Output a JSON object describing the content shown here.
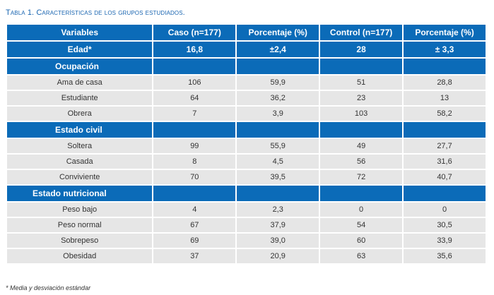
{
  "caption": "Tabla 1. Características de los grupos estudiados.",
  "header": [
    "Variables",
    "Caso (n=177)",
    "Porcentaje (%)",
    "Control (n=177)",
    "Porcentaje (%)"
  ],
  "summary": [
    "Edad*",
    "16,8",
    "±2,4",
    "28",
    "± 3,3"
  ],
  "sections": [
    {
      "title": "Ocupación",
      "rows": [
        [
          "Ama de casa",
          "106",
          "59,9",
          "51",
          "28,8"
        ],
        [
          "Estudiante",
          "64",
          "36,2",
          "23",
          "13"
        ],
        [
          "Obrera",
          "7",
          "3,9",
          "103",
          "58,2"
        ]
      ]
    },
    {
      "title": "Estado civil",
      "rows": [
        [
          "Soltera",
          "99",
          "55,9",
          "49",
          "27,7"
        ],
        [
          "Casada",
          "8",
          "4,5",
          "56",
          "31,6"
        ],
        [
          "Conviviente",
          "70",
          "39,5",
          "72",
          "40,7"
        ]
      ]
    },
    {
      "title": "Estado nutricional",
      "rows": [
        [
          "Peso bajo",
          "4",
          "2,3",
          "0",
          "0"
        ],
        [
          "Peso normal",
          "67",
          "37,9",
          "54",
          "30,5"
        ],
        [
          "Sobrepeso",
          "69",
          "39,0",
          "60",
          "33,9"
        ],
        [
          "Obesidad",
          "37",
          "20,9",
          "63",
          "35,6"
        ]
      ]
    }
  ],
  "footnote": "* Media y desviación estándar",
  "colors": {
    "header_bg": "#0b6bb8",
    "row_bg": "#e6e6e6",
    "caption": "#1b66b1"
  }
}
